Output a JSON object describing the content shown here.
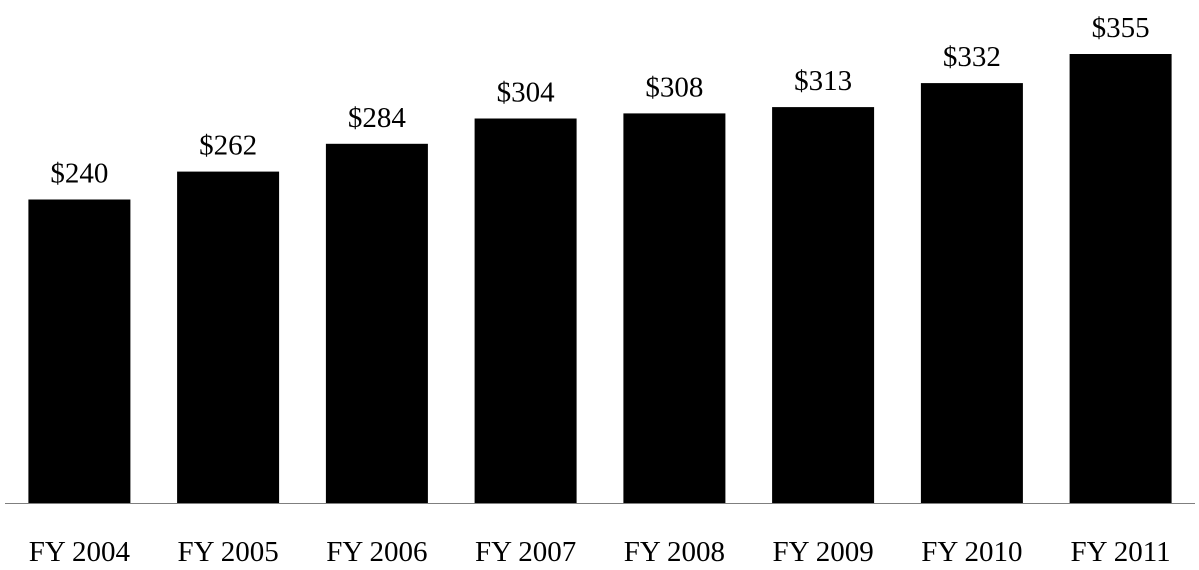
{
  "chart_data": {
    "type": "bar",
    "categories": [
      "FY 2004",
      "FY 2005",
      "FY 2006",
      "FY 2007",
      "FY 2008",
      "FY 2009",
      "FY 2010",
      "FY 2011"
    ],
    "values": [
      240,
      262,
      284,
      304,
      308,
      313,
      332,
      355
    ],
    "data_labels": [
      "$240",
      "$262",
      "$284",
      "$304",
      "$308",
      "$313",
      "$332",
      "$355"
    ],
    "title": "",
    "xlabel": "",
    "ylabel": "",
    "ylim": [
      0,
      355
    ],
    "grid": false,
    "legend": "none",
    "colors": {
      "bar": "#000000",
      "axis": "#7f7f7f",
      "background": "#ffffff"
    }
  }
}
